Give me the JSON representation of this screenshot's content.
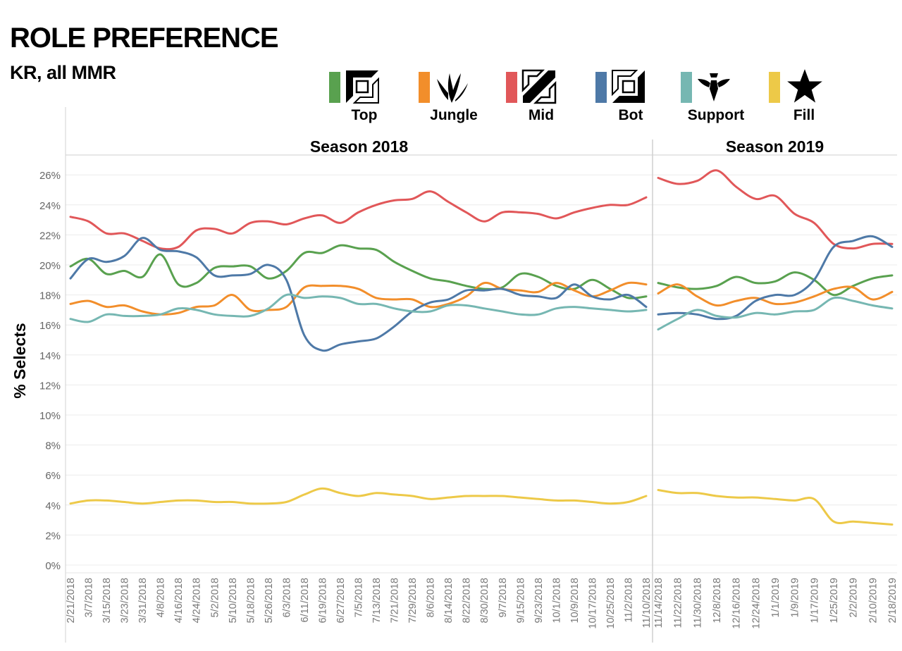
{
  "header": {
    "title": "ROLE PREFERENCE",
    "subtitle": "KR, all MMR"
  },
  "legend": [
    {
      "label": "Top",
      "color": "#59a14f",
      "icon": "top-role-icon"
    },
    {
      "label": "Jungle",
      "color": "#f28e2b",
      "icon": "jungle-role-icon"
    },
    {
      "label": "Mid",
      "color": "#e15759",
      "icon": "mid-role-icon"
    },
    {
      "label": "Bot",
      "color": "#4e79a7",
      "icon": "bot-role-icon"
    },
    {
      "label": "Support",
      "color": "#76b7b2",
      "icon": "support-role-icon"
    },
    {
      "label": "Fill",
      "color": "#edc948",
      "icon": "star-icon"
    }
  ],
  "chart_data": {
    "type": "line",
    "ylabel": "% Selects",
    "ylim": [
      0,
      27
    ],
    "yticks": [
      "0%",
      "2%",
      "4%",
      "6%",
      "8%",
      "10%",
      "12%",
      "14%",
      "16%",
      "18%",
      "20%",
      "22%",
      "24%",
      "26%"
    ],
    "grid": true,
    "legend_placement": "top",
    "panels": [
      {
        "name": "Season 2018",
        "x": [
          "2/21/2018",
          "3/7/2018",
          "3/15/2018",
          "3/23/2018",
          "3/31/2018",
          "4/8/2018",
          "4/16/2018",
          "4/24/2018",
          "5/2/2018",
          "5/10/2018",
          "5/18/2018",
          "5/26/2018",
          "6/3/2018",
          "6/11/2018",
          "6/19/2018",
          "6/27/2018",
          "7/5/2018",
          "7/13/2018",
          "7/21/2018",
          "7/29/2018",
          "8/6/2018",
          "8/14/2018",
          "8/22/2018",
          "8/30/2018",
          "9/7/2018",
          "9/15/2018",
          "9/23/2018",
          "10/1/2018",
          "10/9/2018",
          "10/17/2018",
          "10/25/2018",
          "11/2/2018",
          "11/10/2018"
        ],
        "series": [
          {
            "name": "Top",
            "values": [
              19.9,
              20.4,
              19.4,
              19.6,
              19.2,
              20.7,
              18.7,
              18.8,
              19.8,
              19.9,
              19.9,
              19.1,
              19.6,
              20.8,
              20.8,
              21.3,
              21.1,
              21.0,
              20.2,
              19.6,
              19.1,
              18.9,
              18.6,
              18.4,
              18.5,
              19.4,
              19.2,
              18.6,
              18.4,
              19.0,
              18.4,
              17.8,
              17.9
            ]
          },
          {
            "name": "Jungle",
            "values": [
              17.4,
              17.6,
              17.2,
              17.3,
              16.9,
              16.7,
              16.8,
              17.2,
              17.3,
              18.0,
              17.0,
              17.0,
              17.2,
              18.5,
              18.6,
              18.6,
              18.4,
              17.8,
              17.7,
              17.7,
              17.2,
              17.4,
              17.9,
              18.8,
              18.4,
              18.3,
              18.2,
              18.8,
              18.3,
              17.9,
              18.3,
              18.8,
              18.7
            ]
          },
          {
            "name": "Mid",
            "values": [
              23.2,
              22.9,
              22.1,
              22.1,
              21.6,
              21.1,
              21.2,
              22.3,
              22.4,
              22.1,
              22.8,
              22.9,
              22.7,
              23.1,
              23.3,
              22.8,
              23.5,
              24.0,
              24.3,
              24.4,
              24.9,
              24.2,
              23.5,
              22.9,
              23.5,
              23.5,
              23.4,
              23.1,
              23.5,
              23.8,
              24.0,
              24.0,
              24.5
            ]
          },
          {
            "name": "Bot",
            "values": [
              19.1,
              20.4,
              20.2,
              20.6,
              21.8,
              21.0,
              20.9,
              20.5,
              19.3,
              19.3,
              19.4,
              20.0,
              19.0,
              15.3,
              14.3,
              14.7,
              14.9,
              15.1,
              15.9,
              16.9,
              17.5,
              17.7,
              18.3,
              18.3,
              18.4,
              18.0,
              17.9,
              17.8,
              18.7,
              17.9,
              17.7,
              18.0,
              17.2
            ]
          },
          {
            "name": "Support",
            "values": [
              16.4,
              16.2,
              16.7,
              16.6,
              16.6,
              16.7,
              17.1,
              17.0,
              16.7,
              16.6,
              16.6,
              17.1,
              18.0,
              17.8,
              17.9,
              17.8,
              17.4,
              17.4,
              17.1,
              16.9,
              16.9,
              17.3,
              17.3,
              17.1,
              16.9,
              16.7,
              16.7,
              17.1,
              17.2,
              17.1,
              17.0,
              16.9,
              17.0
            ]
          },
          {
            "name": "Fill",
            "values": [
              4.1,
              4.3,
              4.3,
              4.2,
              4.1,
              4.2,
              4.3,
              4.3,
              4.2,
              4.2,
              4.1,
              4.1,
              4.2,
              4.7,
              5.1,
              4.8,
              4.6,
              4.8,
              4.7,
              4.6,
              4.4,
              4.5,
              4.6,
              4.6,
              4.6,
              4.5,
              4.4,
              4.3,
              4.3,
              4.2,
              4.1,
              4.2,
              4.6
            ]
          }
        ]
      },
      {
        "name": "Season 2019",
        "x": [
          "11/14/2018",
          "11/22/2018",
          "11/30/2018",
          "12/8/2018",
          "12/16/2018",
          "12/24/2018",
          "1/1/2019",
          "1/9/2019",
          "1/17/2019",
          "1/25/2019",
          "2/2/2019",
          "2/10/2019",
          "2/18/2019"
        ],
        "series": [
          {
            "name": "Top",
            "values": [
              18.8,
              18.5,
              18.4,
              18.6,
              19.2,
              18.8,
              18.9,
              19.5,
              19.0,
              18.0,
              18.6,
              19.1,
              19.3
            ]
          },
          {
            "name": "Jungle",
            "values": [
              18.1,
              18.7,
              17.9,
              17.3,
              17.6,
              17.8,
              17.4,
              17.5,
              17.9,
              18.4,
              18.5,
              17.7,
              18.2
            ]
          },
          {
            "name": "Mid",
            "values": [
              25.8,
              25.4,
              25.6,
              26.3,
              25.2,
              24.4,
              24.6,
              23.4,
              22.8,
              21.4,
              21.1,
              21.4,
              21.4
            ]
          },
          {
            "name": "Bot",
            "values": [
              16.7,
              16.8,
              16.7,
              16.4,
              16.6,
              17.6,
              18.0,
              18.0,
              19.0,
              21.2,
              21.6,
              21.9,
              21.2
            ]
          },
          {
            "name": "Support",
            "values": [
              15.7,
              16.4,
              17.0,
              16.6,
              16.5,
              16.8,
              16.7,
              16.9,
              17.0,
              17.8,
              17.6,
              17.3,
              17.1
            ]
          },
          {
            "name": "Fill",
            "values": [
              5.0,
              4.8,
              4.8,
              4.6,
              4.5,
              4.5,
              4.4,
              4.3,
              4.4,
              2.9,
              2.9,
              2.8,
              2.7
            ]
          }
        ]
      }
    ]
  }
}
